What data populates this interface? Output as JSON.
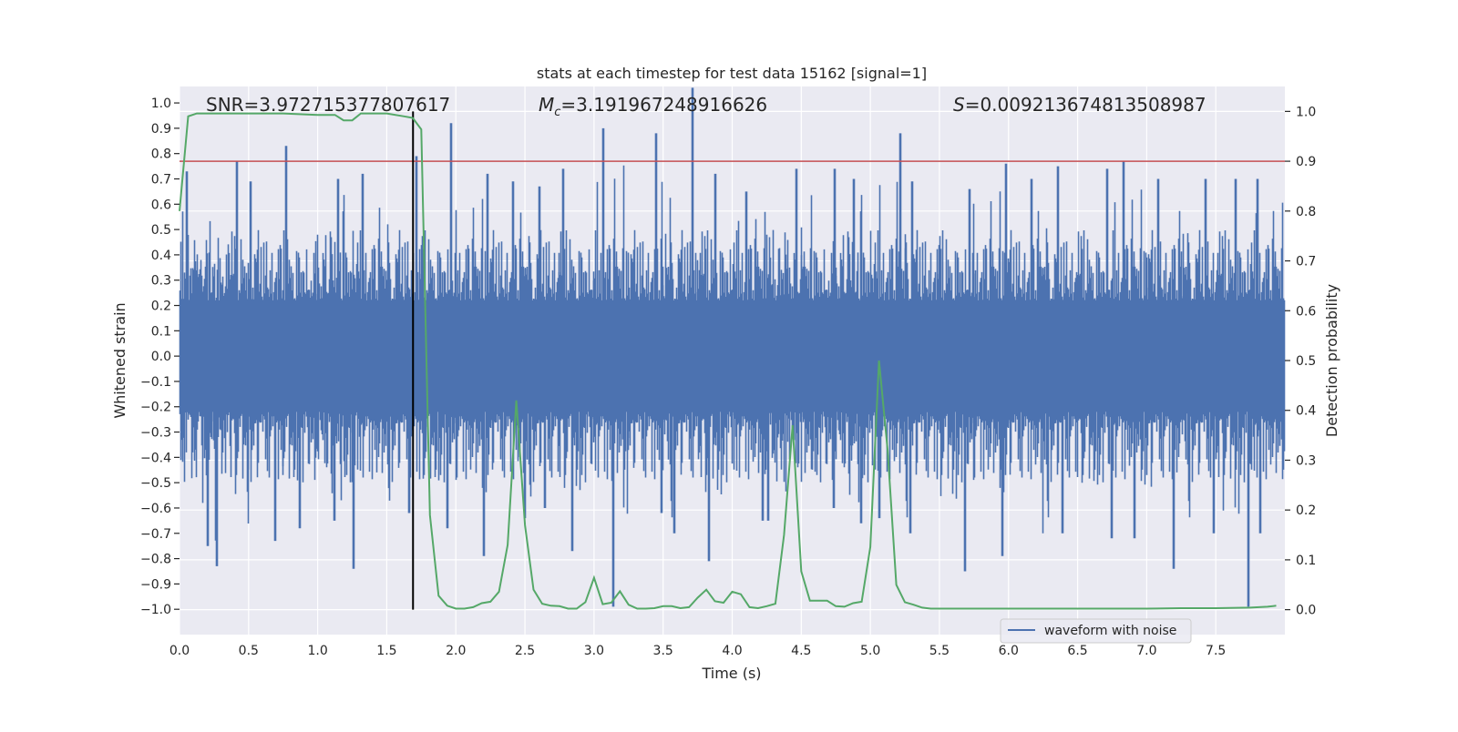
{
  "chart_data": {
    "type": "line",
    "title": "stats at each timestep for test data 15162 [signal=1]",
    "xlabel": "Time (s)",
    "ylabel_left": "Whitened strain",
    "ylabel_right": "Detection probability",
    "xlim": [
      0,
      8
    ],
    "ylim_left": [
      -1.1,
      1.065
    ],
    "ylim_right": [
      -0.05,
      1.05
    ],
    "x_ticks": [
      "0.0",
      "0.5",
      "1.0",
      "1.5",
      "2.0",
      "2.5",
      "3.0",
      "3.5",
      "4.0",
      "4.5",
      "5.0",
      "5.5",
      "6.0",
      "6.5",
      "7.0",
      "7.5"
    ],
    "y_left_ticks": [
      "1.0",
      "0.9",
      "0.8",
      "0.7",
      "0.6",
      "0.5",
      "0.4",
      "0.3",
      "0.2",
      "0.1",
      "0.0",
      "−0.1",
      "−0.2",
      "−0.3",
      "−0.4",
      "−0.5",
      "−0.6",
      "−0.7",
      "−0.8",
      "−0.9",
      "−1.0"
    ],
    "y_right_ticks": [
      "0.0",
      "0.1",
      "0.2",
      "0.3",
      "0.4",
      "0.5",
      "0.6",
      "0.7",
      "0.8",
      "0.9",
      "1.0"
    ],
    "grid": true,
    "legend": {
      "placement": "lower-right",
      "entries": [
        "waveform with noise"
      ]
    },
    "annotations": {
      "snr": "SNR=3.972715377807617",
      "mc_symbol": "M",
      "mc_sub": "c",
      "mc_value": "=3.191967248916626",
      "s_symbol": "S",
      "s_value": "=0.009213674813508987"
    },
    "series": [
      {
        "name": "waveform with noise",
        "axis": "left",
        "color": "#4C72B0",
        "bin_width_s": 0.25,
        "bin_max": [
          0.73,
          0.77,
          0.69,
          0.83,
          0.7,
          0.72,
          0.79,
          0.92,
          0.72,
          0.69,
          0.67,
          0.74,
          0.9,
          0.88,
          1.06,
          0.72,
          0.65,
          0.74,
          0.74,
          0.7,
          0.88,
          0.69,
          0.66,
          0.76,
          0.7,
          0.75,
          0.74,
          0.77,
          0.7,
          0.7,
          0.7,
          0.7
        ],
        "bin_min": [
          -0.75,
          -0.83,
          -0.73,
          -0.68,
          -0.65,
          -0.84,
          -0.62,
          -0.68,
          -0.79,
          -0.64,
          -0.6,
          -0.77,
          -0.99,
          -0.62,
          -0.7,
          -0.81,
          -0.65,
          -0.65,
          -0.6,
          -0.66,
          -0.64,
          -0.7,
          -0.85,
          -0.79,
          -0.7,
          -0.7,
          -0.72,
          -0.72,
          -0.84,
          -0.7,
          -0.99,
          -0.7
        ]
      },
      {
        "axis": "right",
        "color": "#55A868",
        "x": [
          0,
          0.0625,
          0.125,
          0.25,
          0.5,
          0.75,
          1.0,
          1.125,
          1.1875,
          1.25,
          1.3125,
          1.5,
          1.625,
          1.6875,
          1.75,
          1.8125,
          1.875,
          1.9375,
          2.0,
          2.0625,
          2.125,
          2.1875,
          2.25,
          2.3125,
          2.375,
          2.4375,
          2.5,
          2.5625,
          2.625,
          2.6875,
          2.75,
          2.8125,
          2.875,
          2.9375,
          3.0,
          3.0625,
          3.125,
          3.1875,
          3.25,
          3.3125,
          3.375,
          3.4375,
          3.5,
          3.5625,
          3.625,
          3.6875,
          3.75,
          3.8125,
          3.875,
          3.9375,
          4.0,
          4.0625,
          4.125,
          4.1875,
          4.25,
          4.3125,
          4.375,
          4.4375,
          4.5,
          4.5625,
          4.625,
          4.6875,
          4.75,
          4.8125,
          4.875,
          4.9375,
          5.0,
          5.0625,
          5.125,
          5.1875,
          5.25,
          5.3125,
          5.375,
          5.4375,
          5.75,
          6.0,
          6.5,
          7.0,
          7.25,
          7.5,
          7.75,
          7.875,
          7.9375
        ],
        "y": [
          0.8,
          0.99,
          0.996,
          0.996,
          0.996,
          0.996,
          0.993,
          0.993,
          0.982,
          0.982,
          0.996,
          0.996,
          0.99,
          0.987,
          0.964,
          0.19,
          0.028,
          0.008,
          0.002,
          0.002,
          0.005,
          0.013,
          0.016,
          0.036,
          0.13,
          0.42,
          0.17,
          0.04,
          0.012,
          0.008,
          0.007,
          0.002,
          0.002,
          0.015,
          0.064,
          0.011,
          0.014,
          0.037,
          0.01,
          0.002,
          0.002,
          0.003,
          0.007,
          0.007,
          0.003,
          0.005,
          0.024,
          0.04,
          0.017,
          0.014,
          0.036,
          0.031,
          0.005,
          0.003,
          0.007,
          0.012,
          0.15,
          0.37,
          0.077,
          0.018,
          0.018,
          0.018,
          0.007,
          0.006,
          0.013,
          0.016,
          0.126,
          0.5,
          0.32,
          0.05,
          0.015,
          0.01,
          0.004,
          0.002,
          0.002,
          0.002,
          0.002,
          0.002,
          0.003,
          0.003,
          0.004,
          0.006,
          0.008
        ]
      }
    ],
    "threshold_line": {
      "axis": "right",
      "y": 0.9,
      "color": "#C44E52"
    },
    "vertical_marker": {
      "x": 1.69,
      "y_range": [
        0,
        1
      ],
      "axis": "right",
      "color": "#000000"
    },
    "background_color": "#EAEAF2"
  }
}
